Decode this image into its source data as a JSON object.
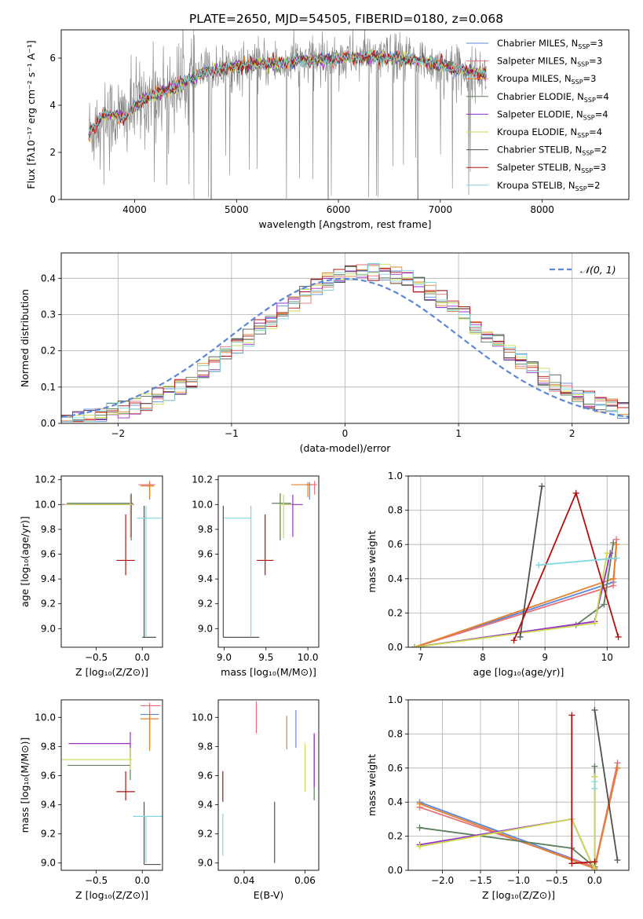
{
  "title": "PLATE=2650, MJD=54505, FIBERID=0180, z=0.068",
  "colors": {
    "Chabrier MILES": "#5b86d9",
    "Salpeter MILES": "#e8707a",
    "Kroupa MILES": "#e5822b",
    "Chabrier ELODIE": "#5c7f5c",
    "Salpeter ELODIE": "#9b30c8",
    "Kroupa ELODIE": "#c8dc4c",
    "Chabrier STELIB": "#505050",
    "Salpeter STELIB": "#b01010",
    "Kroupa STELIB": "#80d8dc",
    "data": "#808080"
  },
  "chart_data": [
    {
      "type": "line",
      "title": "PLATE=2650, MJD=54505, FIBERID=0180, z=0.068",
      "xlabel": "wavelength [Angstrom, rest frame]",
      "ylabel": "Flux [fλ10⁻¹⁷ erg cm⁻² s⁻¹ A⁻¹]",
      "xlim": [
        3280,
        8850
      ],
      "ylim": [
        0,
        7.2
      ],
      "xticks": [
        4000,
        5000,
        6000,
        7000,
        8000
      ],
      "yticks": [
        0,
        2,
        4,
        6
      ],
      "legend_position": "top-right",
      "legend": [
        {
          "name": "Chabrier MILES, N",
          "sub": "SSP",
          "tail": "=3"
        },
        {
          "name": "Salpeter MILES, N",
          "sub": "SSP",
          "tail": "=3"
        },
        {
          "name": "Kroupa MILES, N",
          "sub": "SSP",
          "tail": "=3"
        },
        {
          "name": "Chabrier ELODIE, N",
          "sub": "SSP",
          "tail": "=4"
        },
        {
          "name": "Salpeter ELODIE, N",
          "sub": "SSP",
          "tail": "=4"
        },
        {
          "name": "Kroupa ELODIE, N",
          "sub": "SSP",
          "tail": "=4"
        },
        {
          "name": "Chabrier STELIB, N",
          "sub": "SSP",
          "tail": "=2"
        },
        {
          "name": "Salpeter STELIB, N",
          "sub": "SSP",
          "tail": "=3"
        },
        {
          "name": "Kroupa STELIB, N",
          "sub": "SSP",
          "tail": "=2"
        }
      ],
      "continuum": [
        [
          3550,
          2.8
        ],
        [
          3700,
          3.6
        ],
        [
          3900,
          3.5
        ],
        [
          4000,
          3.9
        ],
        [
          4100,
          4.3
        ],
        [
          4300,
          4.6
        ],
        [
          4500,
          5.0
        ],
        [
          4700,
          5.4
        ],
        [
          4900,
          5.6
        ],
        [
          5100,
          5.7
        ],
        [
          5400,
          5.8
        ],
        [
          5700,
          5.9
        ],
        [
          6000,
          6.0
        ],
        [
          6300,
          6.05
        ],
        [
          6600,
          6.0
        ],
        [
          6900,
          5.8
        ],
        [
          7200,
          5.5
        ],
        [
          7450,
          5.3
        ]
      ]
    },
    {
      "type": "line",
      "xlabel": "(data-model)/error",
      "ylabel": "Normed distribution",
      "xlim": [
        -2.5,
        2.5
      ],
      "ylim": [
        0,
        0.47
      ],
      "xticks": [
        -2,
        -1,
        0,
        1,
        2
      ],
      "yticks": [
        0.0,
        0.1,
        0.2,
        0.3,
        0.4
      ],
      "grid": true,
      "legend": "𝒩(0, 1)",
      "legend_position": "top-right",
      "bin_width": 0.1,
      "series_note": "step histograms for 9 SSP models plus N(0,1) curve"
    },
    {
      "type": "scatter",
      "xlabel": "Z [log₁₀(Z/Z⊙)]",
      "ylabel": "age  [log₁₀(age/yr)]",
      "xlim": [
        -0.88,
        0.22
      ],
      "ylim": [
        8.85,
        10.23
      ],
      "xticks": [
        -0.5,
        0.0
      ],
      "yticks": [
        9.0,
        9.2,
        9.4,
        9.6,
        9.8,
        10.0,
        10.2
      ],
      "points": [
        {
          "model": "Chabrier MILES",
          "x": 0.08,
          "y": 10.16,
          "xerr": [
            0.08,
            0.04
          ],
          "yerr": [
            0.12,
            0.02
          ]
        },
        {
          "model": "Salpeter MILES",
          "x": 0.08,
          "y": 10.16,
          "xerr": [
            0.12,
            0.06
          ],
          "yerr": [
            0.08,
            0.03
          ]
        },
        {
          "model": "Kroupa MILES",
          "x": 0.08,
          "y": 10.15,
          "xerr": [
            0.1,
            0.05
          ],
          "yerr": [
            0.1,
            0.02
          ]
        },
        {
          "model": "Chabrier ELODIE",
          "x": -0.12,
          "y": 10.01,
          "xerr": [
            0.7,
            0.02
          ],
          "yerr": [
            0.3,
            0.08
          ]
        },
        {
          "model": "Salpeter ELODIE",
          "x": -0.12,
          "y": 10.0,
          "xerr": [
            0.75,
            0.03
          ],
          "yerr": [
            0.26,
            0.08
          ]
        },
        {
          "model": "Kroupa ELODIE",
          "x": -0.13,
          "y": 10.0,
          "xerr": [
            0.72,
            0.03
          ],
          "yerr": [
            0.27,
            0.08
          ]
        },
        {
          "model": "Chabrier STELIB",
          "x": 0.02,
          "y": 8.93,
          "xerr": [
            0.02,
            0.13
          ],
          "yerr": [
            0.0,
            1.06
          ]
        },
        {
          "model": "Salpeter STELIB",
          "x": -0.18,
          "y": 9.55,
          "xerr": [
            0.1,
            0.1
          ],
          "yerr": [
            0.12,
            0.37
          ]
        },
        {
          "model": "Kroupa STELIB",
          "x": 0.04,
          "y": 9.89,
          "xerr": [
            0.1,
            0.17
          ],
          "yerr": [
            0.96,
            0.1
          ]
        }
      ]
    },
    {
      "type": "scatter",
      "xlabel": "mass [log₁₀(M/M⊙)]",
      "xlim": [
        8.93,
        10.13
      ],
      "ylim": [
        8.85,
        10.23
      ],
      "xticks": [
        9.0,
        9.5,
        10.0
      ],
      "yticks": [
        9.0,
        9.2,
        9.4,
        9.6,
        9.8,
        10.0,
        10.2
      ],
      "points": [
        {
          "model": "Chabrier MILES",
          "x": 10.02,
          "y": 10.16,
          "xerr": [
            0.05,
            0.03
          ],
          "yerr": [
            0.12,
            0.02
          ]
        },
        {
          "model": "Salpeter MILES",
          "x": 10.08,
          "y": 10.16,
          "xerr": [
            0.05,
            0.03
          ],
          "yerr": [
            0.08,
            0.03
          ]
        },
        {
          "model": "Kroupa MILES",
          "x": 10.0,
          "y": 10.16,
          "xerr": [
            0.2,
            0.05
          ],
          "yerr": [
            0.1,
            0.02
          ]
        },
        {
          "model": "Chabrier ELODIE",
          "x": 9.67,
          "y": 10.01,
          "xerr": [
            0.1,
            0.13
          ],
          "yerr": [
            0.3,
            0.08
          ]
        },
        {
          "model": "Salpeter ELODIE",
          "x": 9.82,
          "y": 10.0,
          "xerr": [
            0.1,
            0.12
          ],
          "yerr": [
            0.26,
            0.08
          ]
        },
        {
          "model": "Kroupa ELODIE",
          "x": 9.71,
          "y": 10.0,
          "xerr": [
            0.05,
            0.1
          ],
          "yerr": [
            0.27,
            0.08
          ]
        },
        {
          "model": "Chabrier STELIB",
          "x": 8.99,
          "y": 8.93,
          "xerr": [
            0.0,
            0.43
          ],
          "yerr": [
            0.0,
            1.06
          ]
        },
        {
          "model": "Salpeter STELIB",
          "x": 9.49,
          "y": 9.55,
          "xerr": [
            0.1,
            0.1
          ],
          "yerr": [
            0.12,
            0.37
          ]
        },
        {
          "model": "Kroupa STELIB",
          "x": 9.32,
          "y": 9.89,
          "xerr": [
            0.32,
            0.0
          ],
          "yerr": [
            0.96,
            0.1
          ]
        }
      ]
    },
    {
      "type": "line",
      "xlabel": "age  [log₁₀(age/yr)]",
      "ylabel": "mass weight",
      "xlim": [
        6.8,
        10.35
      ],
      "ylim": [
        0,
        1.0
      ],
      "xticks": [
        7,
        8,
        9,
        10
      ],
      "yticks": [
        0.0,
        0.2,
        0.4,
        0.6,
        0.8,
        1.0
      ],
      "grid": true,
      "series": [
        {
          "name": "Chabrier MILES",
          "points": [
            [
              6.9,
              0.0
            ],
            [
              10.1,
              0.38
            ],
            [
              10.15,
              0.6
            ]
          ]
        },
        {
          "name": "Salpeter MILES",
          "points": [
            [
              6.9,
              0.0
            ],
            [
              10.1,
              0.36
            ],
            [
              10.15,
              0.63
            ]
          ]
        },
        {
          "name": "Kroupa MILES",
          "points": [
            [
              6.9,
              0.0
            ],
            [
              10.1,
              0.4
            ],
            [
              10.15,
              0.6
            ]
          ]
        },
        {
          "name": "Chabrier ELODIE",
          "points": [
            [
              6.9,
              0.0
            ],
            [
              9.5,
              0.13
            ],
            [
              9.95,
              0.25
            ],
            [
              10.1,
              0.61
            ]
          ]
        },
        {
          "name": "Salpeter ELODIE",
          "points": [
            [
              6.9,
              0.0
            ],
            [
              9.8,
              0.15
            ],
            [
              10.05,
              0.55
            ]
          ]
        },
        {
          "name": "Kroupa ELODIE",
          "points": [
            [
              6.9,
              0.0
            ],
            [
              9.8,
              0.14
            ],
            [
              10.0,
              0.55
            ]
          ]
        },
        {
          "name": "Chabrier STELIB",
          "points": [
            [
              8.6,
              0.06
            ],
            [
              8.95,
              0.94
            ]
          ]
        },
        {
          "name": "Salpeter STELIB",
          "points": [
            [
              8.5,
              0.04
            ],
            [
              9.5,
              0.9
            ],
            [
              10.18,
              0.06
            ]
          ]
        },
        {
          "name": "Kroupa STELIB",
          "points": [
            [
              8.9,
              0.48
            ],
            [
              10.15,
              0.52
            ]
          ]
        }
      ]
    },
    {
      "type": "scatter",
      "xlabel": "Z [log₁₀(Z/Z⊙)]",
      "ylabel": "mass [log₁₀(M/M⊙)]",
      "xlim": [
        -0.88,
        0.22
      ],
      "ylim": [
        8.95,
        10.12
      ],
      "xticks": [
        -0.5,
        0.0
      ],
      "yticks": [
        9.0,
        9.2,
        9.4,
        9.6,
        9.8,
        10.0
      ],
      "points": [
        {
          "model": "Chabrier MILES",
          "x": 0.08,
          "y": 10.02,
          "xerr": [
            0.1,
            0.1
          ],
          "yerr": [
            0.22,
            0.02
          ]
        },
        {
          "model": "Salpeter MILES",
          "x": 0.08,
          "y": 10.08,
          "xerr": [
            0.1,
            0.12
          ],
          "yerr": [
            0.18,
            0.02
          ]
        },
        {
          "model": "Kroupa MILES",
          "x": 0.08,
          "y": 9.99,
          "xerr": [
            0.1,
            0.1
          ],
          "yerr": [
            0.22,
            0.03
          ]
        },
        {
          "model": "Chabrier ELODIE",
          "x": -0.13,
          "y": 9.67,
          "xerr": [
            0.68,
            0.0
          ],
          "yerr": [
            0.1,
            0.15
          ]
        },
        {
          "model": "Salpeter ELODIE",
          "x": -0.13,
          "y": 9.82,
          "xerr": [
            0.67,
            0.0
          ],
          "yerr": [
            0.1,
            0.08
          ]
        },
        {
          "model": "Kroupa ELODIE",
          "x": -0.13,
          "y": 9.71,
          "xerr": [
            0.74,
            0.02
          ],
          "yerr": [
            0.07,
            0.08
          ]
        },
        {
          "model": "Chabrier STELIB",
          "x": 0.02,
          "y": 8.99,
          "xerr": [
            0.0,
            0.18
          ],
          "yerr": [
            0.0,
            0.43
          ]
        },
        {
          "model": "Salpeter STELIB",
          "x": -0.18,
          "y": 9.49,
          "xerr": [
            0.1,
            0.1
          ],
          "yerr": [
            0.06,
            0.14
          ]
        },
        {
          "model": "Kroupa STELIB",
          "x": 0.04,
          "y": 9.32,
          "xerr": [
            0.14,
            0.2
          ],
          "yerr": [
            0.32,
            0.0
          ]
        }
      ]
    },
    {
      "type": "scatter",
      "xlabel": "E(B-V)",
      "xlim": [
        0.0315,
        0.0645
      ],
      "ylim": [
        8.95,
        10.12
      ],
      "xticks": [
        0.04,
        0.06
      ],
      "yticks": [
        9.0,
        9.2,
        9.4,
        9.6,
        9.8,
        10.0
      ],
      "points": [
        {
          "model": "Chabrier MILES",
          "x": 0.057,
          "y": 9.92,
          "yerr": [
            0.13,
            0.13
          ]
        },
        {
          "model": "Salpeter MILES",
          "x": 0.044,
          "y": 10.0,
          "yerr": [
            0.11,
            0.11
          ]
        },
        {
          "model": "Kroupa MILES",
          "x": 0.054,
          "y": 9.9,
          "yerr": [
            0.12,
            0.11
          ]
        },
        {
          "model": "Chabrier ELODIE",
          "x": 0.063,
          "y": 9.66,
          "yerr": [
            0.23,
            0.23
          ]
        },
        {
          "model": "Salpeter ELODIE",
          "x": 0.063,
          "y": 9.7,
          "yerr": [
            0.18,
            0.19
          ]
        },
        {
          "model": "Kroupa ELODIE",
          "x": 0.06,
          "y": 9.66,
          "yerr": [
            0.17,
            0.16
          ]
        },
        {
          "model": "Chabrier STELIB",
          "x": 0.05,
          "y": 9.2,
          "yerr": [
            0.2,
            0.22
          ]
        },
        {
          "model": "Salpeter STELIB",
          "x": 0.033,
          "y": 9.52,
          "yerr": [
            0.1,
            0.11
          ]
        },
        {
          "model": "Kroupa STELIB",
          "x": 0.033,
          "y": 9.2,
          "yerr": [
            0.15,
            0.14
          ]
        }
      ]
    },
    {
      "type": "line",
      "xlabel": "Z [log₁₀(Z/Z⊙)]",
      "ylabel": "mass weight",
      "xlim": [
        -2.45,
        0.45
      ],
      "ylim": [
        0,
        1.0
      ],
      "xticks": [
        -2.0,
        -1.5,
        -1.0,
        -0.5,
        0.0
      ],
      "yticks": [
        0.0,
        0.2,
        0.4,
        0.6,
        0.8,
        1.0
      ],
      "grid": true,
      "series": [
        {
          "name": "Chabrier MILES",
          "points": [
            [
              -2.3,
              0.4
            ],
            [
              0.0,
              0.02
            ],
            [
              0.3,
              0.6
            ]
          ]
        },
        {
          "name": "Salpeter MILES",
          "points": [
            [
              -2.3,
              0.37
            ],
            [
              0.0,
              0.02
            ],
            [
              0.3,
              0.63
            ]
          ]
        },
        {
          "name": "Kroupa MILES",
          "points": [
            [
              -2.3,
              0.39
            ],
            [
              0.0,
              0.01
            ],
            [
              0.3,
              0.6
            ]
          ]
        },
        {
          "name": "Chabrier ELODIE",
          "points": [
            [
              -2.3,
              0.25
            ],
            [
              -0.3,
              0.13
            ],
            [
              0.0,
              0.02
            ],
            [
              0.0,
              0.61
            ]
          ]
        },
        {
          "name": "Salpeter ELODIE",
          "points": [
            [
              -2.3,
              0.15
            ],
            [
              -0.3,
              0.3
            ],
            [
              0.0,
              0.0
            ],
            [
              0.0,
              0.55
            ]
          ]
        },
        {
          "name": "Kroupa ELODIE",
          "points": [
            [
              -2.3,
              0.14
            ],
            [
              -0.3,
              0.3
            ],
            [
              0.0,
              0.0
            ],
            [
              0.0,
              0.55
            ]
          ]
        },
        {
          "name": "Chabrier STELIB",
          "points": [
            [
              0.0,
              0.94
            ],
            [
              0.3,
              0.06
            ]
          ]
        },
        {
          "name": "Salpeter STELIB",
          "points": [
            [
              -0.3,
              0.91
            ],
            [
              -0.3,
              0.04
            ],
            [
              0.0,
              0.05
            ]
          ]
        },
        {
          "name": "Kroupa STELIB",
          "points": [
            [
              0.0,
              0.48
            ],
            [
              0.0,
              0.52
            ]
          ]
        }
      ]
    }
  ]
}
